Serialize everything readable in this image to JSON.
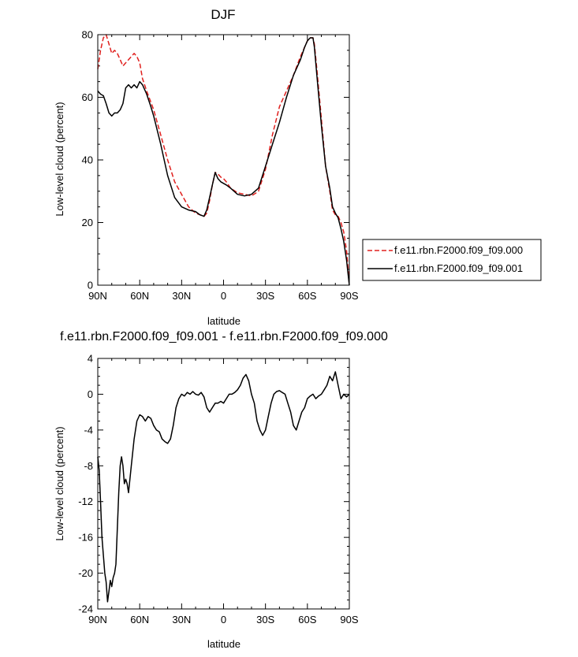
{
  "chart_data": [
    {
      "type": "line",
      "title": "DJF",
      "xlabel": "latitude",
      "ylabel": "Low-level cloud (percent)",
      "xlim": [
        -90,
        90
      ],
      "ylim": [
        0,
        80
      ],
      "x_ticks": [
        {
          "value": -90,
          "label": "90N"
        },
        {
          "value": -60,
          "label": "60N"
        },
        {
          "value": -30,
          "label": "30N"
        },
        {
          "value": 0,
          "label": "0"
        },
        {
          "value": 30,
          "label": "30S"
        },
        {
          "value": 60,
          "label": "60S"
        },
        {
          "value": 90,
          "label": "90S"
        }
      ],
      "y_ticks": [
        {
          "value": 0,
          "label": "0"
        },
        {
          "value": 20,
          "label": "20"
        },
        {
          "value": 40,
          "label": "40"
        },
        {
          "value": 60,
          "label": "60"
        },
        {
          "value": 80,
          "label": "80"
        }
      ],
      "legend": "outside-right",
      "series": [
        {
          "name": "f.e11.rbn.F2000.f09_f09.000",
          "color": "#e0201e",
          "dash": "dashed",
          "points": [
            [
              -90,
              69
            ],
            [
              -88,
              75
            ],
            [
              -86,
              79
            ],
            [
              -84,
              80
            ],
            [
              -82,
              77
            ],
            [
              -80,
              74
            ],
            [
              -78,
              75
            ],
            [
              -76,
              74
            ],
            [
              -74,
              72
            ],
            [
              -72,
              70
            ],
            [
              -70,
              71
            ],
            [
              -68,
              72
            ],
            [
              -66,
              73
            ],
            [
              -64,
              74
            ],
            [
              -62,
              73
            ],
            [
              -60,
              71
            ],
            [
              -58,
              66
            ],
            [
              -55,
              62
            ],
            [
              -50,
              56
            ],
            [
              -45,
              48
            ],
            [
              -40,
              40
            ],
            [
              -35,
              33
            ],
            [
              -30,
              29
            ],
            [
              -25,
              25
            ],
            [
              -20,
              23
            ],
            [
              -17,
              22.5
            ],
            [
              -14,
              22
            ],
            [
              -12,
              23
            ],
            [
              -10,
              27
            ],
            [
              -8,
              32
            ],
            [
              -6,
              36
            ],
            [
              -4,
              35.5
            ],
            [
              -2,
              34.5
            ],
            [
              0,
              34
            ],
            [
              2,
              33
            ],
            [
              5,
              31
            ],
            [
              10,
              29.5
            ],
            [
              15,
              29
            ],
            [
              20,
              28.5
            ],
            [
              25,
              30
            ],
            [
              30,
              37
            ],
            [
              35,
              48
            ],
            [
              40,
              57
            ],
            [
              45,
              62
            ],
            [
              50,
              67
            ],
            [
              55,
              73
            ],
            [
              58,
              76
            ],
            [
              60,
              78
            ],
            [
              62,
              79
            ],
            [
              64,
              79
            ],
            [
              65,
              77
            ],
            [
              67,
              68
            ],
            [
              70,
              53
            ],
            [
              73,
              38
            ],
            [
              76,
              30
            ],
            [
              78,
              24
            ],
            [
              80,
              22.5
            ],
            [
              82,
              22
            ],
            [
              84,
              20
            ],
            [
              86,
              17
            ],
            [
              88,
              11
            ],
            [
              89,
              6
            ],
            [
              90,
              0
            ]
          ]
        },
        {
          "name": "f.e11.rbn.F2000.f09_f09.001",
          "color": "#000000",
          "dash": "solid",
          "points": [
            [
              -90,
              62
            ],
            [
              -88,
              61
            ],
            [
              -86,
              60.5
            ],
            [
              -84,
              58
            ],
            [
              -82,
              55
            ],
            [
              -80,
              54
            ],
            [
              -78,
              55
            ],
            [
              -76,
              55
            ],
            [
              -74,
              56
            ],
            [
              -72,
              58
            ],
            [
              -70,
              63
            ],
            [
              -68,
              64
            ],
            [
              -66,
              63
            ],
            [
              -64,
              64
            ],
            [
              -62,
              63
            ],
            [
              -60,
              65
            ],
            [
              -58,
              64
            ],
            [
              -55,
              61
            ],
            [
              -52,
              57
            ],
            [
              -50,
              54
            ],
            [
              -45,
              45
            ],
            [
              -40,
              35
            ],
            [
              -35,
              28
            ],
            [
              -30,
              25
            ],
            [
              -25,
              24
            ],
            [
              -20,
              23.5
            ],
            [
              -17,
              22.5
            ],
            [
              -14,
              22
            ],
            [
              -12,
              24
            ],
            [
              -10,
              28
            ],
            [
              -8,
              32
            ],
            [
              -6,
              36
            ],
            [
              -4,
              34
            ],
            [
              -2,
              33
            ],
            [
              0,
              32.5
            ],
            [
              2,
              32
            ],
            [
              5,
              31
            ],
            [
              10,
              29
            ],
            [
              15,
              28.5
            ],
            [
              20,
              29
            ],
            [
              25,
              31
            ],
            [
              30,
              38
            ],
            [
              35,
              45
            ],
            [
              40,
              52
            ],
            [
              45,
              60
            ],
            [
              50,
              67
            ],
            [
              55,
              72
            ],
            [
              58,
              76
            ],
            [
              60,
              78
            ],
            [
              62,
              79
            ],
            [
              64,
              79
            ],
            [
              65,
              76
            ],
            [
              67,
              66
            ],
            [
              70,
              51
            ],
            [
              73,
              38
            ],
            [
              76,
              31
            ],
            [
              78,
              25
            ],
            [
              80,
              23
            ],
            [
              82,
              21.5
            ],
            [
              84,
              18
            ],
            [
              86,
              14
            ],
            [
              88,
              8
            ],
            [
              89,
              4
            ],
            [
              90,
              0
            ]
          ]
        }
      ]
    },
    {
      "type": "line",
      "title": "f.e11.rbn.F2000.f09_f09.001 - f.e11.rbn.F2000.f09_f09.000",
      "xlabel": "latitude",
      "ylabel": "Low-level cloud (percent)",
      "xlim": [
        -90,
        90
      ],
      "ylim": [
        -24,
        4
      ],
      "x_ticks": [
        {
          "value": -90,
          "label": "90N"
        },
        {
          "value": -60,
          "label": "60N"
        },
        {
          "value": -30,
          "label": "30N"
        },
        {
          "value": 0,
          "label": "0"
        },
        {
          "value": 30,
          "label": "30S"
        },
        {
          "value": 60,
          "label": "60S"
        },
        {
          "value": 90,
          "label": "90S"
        }
      ],
      "y_ticks": [
        {
          "value": -24,
          "label": "-24"
        },
        {
          "value": -20,
          "label": "-20"
        },
        {
          "value": -16,
          "label": "-16"
        },
        {
          "value": -12,
          "label": "-12"
        },
        {
          "value": -8,
          "label": "-8"
        },
        {
          "value": -4,
          "label": "-4"
        },
        {
          "value": 0,
          "label": "0"
        },
        {
          "value": 4,
          "label": "4"
        }
      ],
      "series": [
        {
          "color": "#000000",
          "dash": "solid",
          "points": [
            [
              -90,
              -7
            ],
            [
              -89,
              -8.5
            ],
            [
              -88,
              -12
            ],
            [
              -87,
              -16
            ],
            [
              -86,
              -18
            ],
            [
              -85,
              -20
            ],
            [
              -84,
              -21
            ],
            [
              -83,
              -23.2
            ],
            [
              -82,
              -22
            ],
            [
              -81,
              -20.8
            ],
            [
              -80,
              -21.5
            ],
            [
              -79,
              -20.5
            ],
            [
              -78,
              -20
            ],
            [
              -77,
              -19
            ],
            [
              -76,
              -15
            ],
            [
              -75,
              -11
            ],
            [
              -74,
              -8
            ],
            [
              -73,
              -7
            ],
            [
              -72,
              -8
            ],
            [
              -71,
              -10
            ],
            [
              -70,
              -9.5
            ],
            [
              -69,
              -10
            ],
            [
              -68,
              -11
            ],
            [
              -66,
              -8
            ],
            [
              -64,
              -5
            ],
            [
              -62,
              -3
            ],
            [
              -60,
              -2.3
            ],
            [
              -58,
              -2.5
            ],
            [
              -56,
              -3
            ],
            [
              -54,
              -2.5
            ],
            [
              -52,
              -2.7
            ],
            [
              -50,
              -3.5
            ],
            [
              -48,
              -4
            ],
            [
              -46,
              -4.2
            ],
            [
              -44,
              -5
            ],
            [
              -42,
              -5.3
            ],
            [
              -40,
              -5.5
            ],
            [
              -38,
              -5
            ],
            [
              -36,
              -3.5
            ],
            [
              -34,
              -1.5
            ],
            [
              -32,
              -0.5
            ],
            [
              -30,
              0
            ],
            [
              -28,
              -0.2
            ],
            [
              -26,
              0.2
            ],
            [
              -24,
              0
            ],
            [
              -22,
              0.3
            ],
            [
              -20,
              0
            ],
            [
              -18,
              -0.1
            ],
            [
              -16,
              0.2
            ],
            [
              -14,
              -0.3
            ],
            [
              -12,
              -1.5
            ],
            [
              -10,
              -2
            ],
            [
              -8,
              -1.5
            ],
            [
              -6,
              -1
            ],
            [
              -4,
              -1
            ],
            [
              -2,
              -0.8
            ],
            [
              0,
              -1
            ],
            [
              2,
              -0.5
            ],
            [
              4,
              0
            ],
            [
              6,
              0
            ],
            [
              8,
              0.2
            ],
            [
              10,
              0.5
            ],
            [
              12,
              1
            ],
            [
              14,
              1.8
            ],
            [
              16,
              2.2
            ],
            [
              18,
              1.5
            ],
            [
              20,
              0
            ],
            [
              22,
              -1
            ],
            [
              24,
              -3
            ],
            [
              26,
              -4
            ],
            [
              28,
              -4.6
            ],
            [
              30,
              -4
            ],
            [
              32,
              -2.5
            ],
            [
              34,
              -1
            ],
            [
              36,
              0
            ],
            [
              38,
              0.3
            ],
            [
              40,
              0.4
            ],
            [
              42,
              0.2
            ],
            [
              44,
              0
            ],
            [
              46,
              -1
            ],
            [
              48,
              -2
            ],
            [
              50,
              -3.5
            ],
            [
              52,
              -4
            ],
            [
              54,
              -3
            ],
            [
              56,
              -2
            ],
            [
              58,
              -1.5
            ],
            [
              60,
              -0.5
            ],
            [
              62,
              -0.2
            ],
            [
              64,
              0
            ],
            [
              66,
              -0.5
            ],
            [
              68,
              -0.2
            ],
            [
              70,
              0
            ],
            [
              72,
              0.5
            ],
            [
              74,
              1
            ],
            [
              76,
              2
            ],
            [
              78,
              1.5
            ],
            [
              80,
              2.5
            ],
            [
              82,
              1
            ],
            [
              84,
              -0.5
            ],
            [
              86,
              0
            ],
            [
              88,
              -0.3
            ],
            [
              90,
              0
            ]
          ]
        }
      ]
    }
  ]
}
